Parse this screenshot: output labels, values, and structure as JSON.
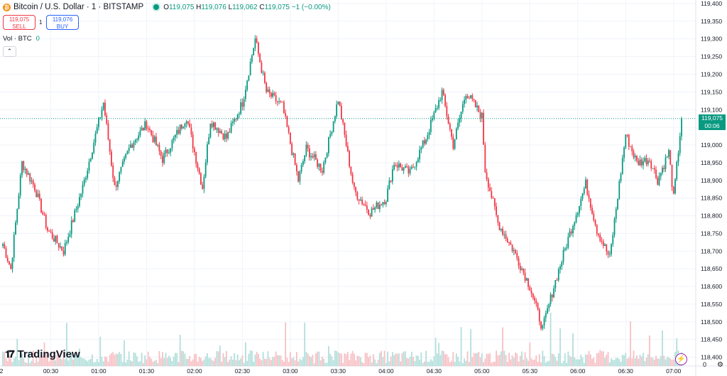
{
  "header": {
    "symbol": "Bitcoin / U.S. Dollar · 1 · BITSTAMP",
    "open_label": "O",
    "open": "119,075",
    "high_label": "H",
    "high": "119,076",
    "low_label": "L",
    "low": "119,062",
    "close_label": "C",
    "close": "119,075",
    "change": "−1 (−0.00%)",
    "coin_icon": "bitcoin-icon"
  },
  "trade": {
    "sell_price": "119,075",
    "sell_label": "SELL",
    "buy_price": "119,076",
    "buy_label": "BUY",
    "quantity": "1"
  },
  "volume": {
    "label": "Vol · BTC",
    "value": "0"
  },
  "collapse_icon": "chevron-up-icon",
  "price_tag": {
    "price": "119,075",
    "countdown": "00:06"
  },
  "brand": {
    "name": "TradingView",
    "icon": "tradingview-logo-icon"
  },
  "bottom_right": {
    "zero_label": "0",
    "settings_icon": "gear-icon"
  },
  "colors": {
    "up": "#089981",
    "down": "#f23645",
    "up_volume": "#b2dfdb",
    "down_volume": "#f7c0c4",
    "grid": "#f0f3fa"
  },
  "chart_data": {
    "type": "candlestick",
    "y_tick_labels": [
      "119,400",
      "119,350",
      "119,300",
      "119,250",
      "119,200",
      "119,150",
      "119,100",
      "119,050",
      "119,000",
      "118,950",
      "118,900",
      "118,850",
      "118,800",
      "118,750",
      "118,700",
      "118,650",
      "118,600",
      "118,550",
      "118,500",
      "118,450",
      "118,400"
    ],
    "ylim": [
      118375,
      119410
    ],
    "x_tick_labels": [
      "2",
      "00:30",
      "01:00",
      "01:30",
      "02:00",
      "02:30",
      "03:00",
      "03:30",
      "04:00",
      "04:30",
      "05:00",
      "05:30",
      "06:00",
      "06:30",
      "07:00"
    ],
    "last_price": 119075,
    "key_points": [
      {
        "time": "00:00",
        "price": 118720
      },
      {
        "time": "00:05",
        "price": 118650
      },
      {
        "time": "00:12",
        "price": 118950
      },
      {
        "time": "00:20",
        "price": 118880
      },
      {
        "time": "00:28",
        "price": 118760
      },
      {
        "time": "00:38",
        "price": 118700
      },
      {
        "time": "00:50",
        "price": 118880
      },
      {
        "time": "01:03",
        "price": 119120
      },
      {
        "time": "01:10",
        "price": 118880
      },
      {
        "time": "01:20",
        "price": 119000
      },
      {
        "time": "01:30",
        "price": 119060
      },
      {
        "time": "01:40",
        "price": 118960
      },
      {
        "time": "01:55",
        "price": 119080
      },
      {
        "time": "02:05",
        "price": 118880
      },
      {
        "time": "02:10",
        "price": 119070
      },
      {
        "time": "02:20",
        "price": 119020
      },
      {
        "time": "02:30",
        "price": 119120
      },
      {
        "time": "02:38",
        "price": 119300
      },
      {
        "time": "02:45",
        "price": 119150
      },
      {
        "time": "02:55",
        "price": 119110
      },
      {
        "time": "03:05",
        "price": 118900
      },
      {
        "time": "03:10",
        "price": 118990
      },
      {
        "time": "03:20",
        "price": 118930
      },
      {
        "time": "03:30",
        "price": 119130
      },
      {
        "time": "03:40",
        "price": 118870
      },
      {
        "time": "03:50",
        "price": 118810
      },
      {
        "time": "04:00",
        "price": 118850
      },
      {
        "time": "04:05",
        "price": 118950
      },
      {
        "time": "04:15",
        "price": 118920
      },
      {
        "time": "04:25",
        "price": 119020
      },
      {
        "time": "04:35",
        "price": 119150
      },
      {
        "time": "04:42",
        "price": 119000
      },
      {
        "time": "04:50",
        "price": 119150
      },
      {
        "time": "05:00",
        "price": 119080
      },
      {
        "time": "05:02",
        "price": 118930
      },
      {
        "time": "05:10",
        "price": 118780
      },
      {
        "time": "05:20",
        "price": 118700
      },
      {
        "time": "05:30",
        "price": 118600
      },
      {
        "time": "05:38",
        "price": 118480
      },
      {
        "time": "05:45",
        "price": 118600
      },
      {
        "time": "05:55",
        "price": 118750
      },
      {
        "time": "06:05",
        "price": 118890
      },
      {
        "time": "06:12",
        "price": 118760
      },
      {
        "time": "06:20",
        "price": 118680
      },
      {
        "time": "06:30",
        "price": 119030
      },
      {
        "time": "06:37",
        "price": 118950
      },
      {
        "time": "06:45",
        "price": 118960
      },
      {
        "time": "06:50",
        "price": 118900
      },
      {
        "time": "06:57",
        "price": 118980
      },
      {
        "time": "07:00",
        "price": 118850
      },
      {
        "time": "07:05",
        "price": 119075
      }
    ]
  }
}
